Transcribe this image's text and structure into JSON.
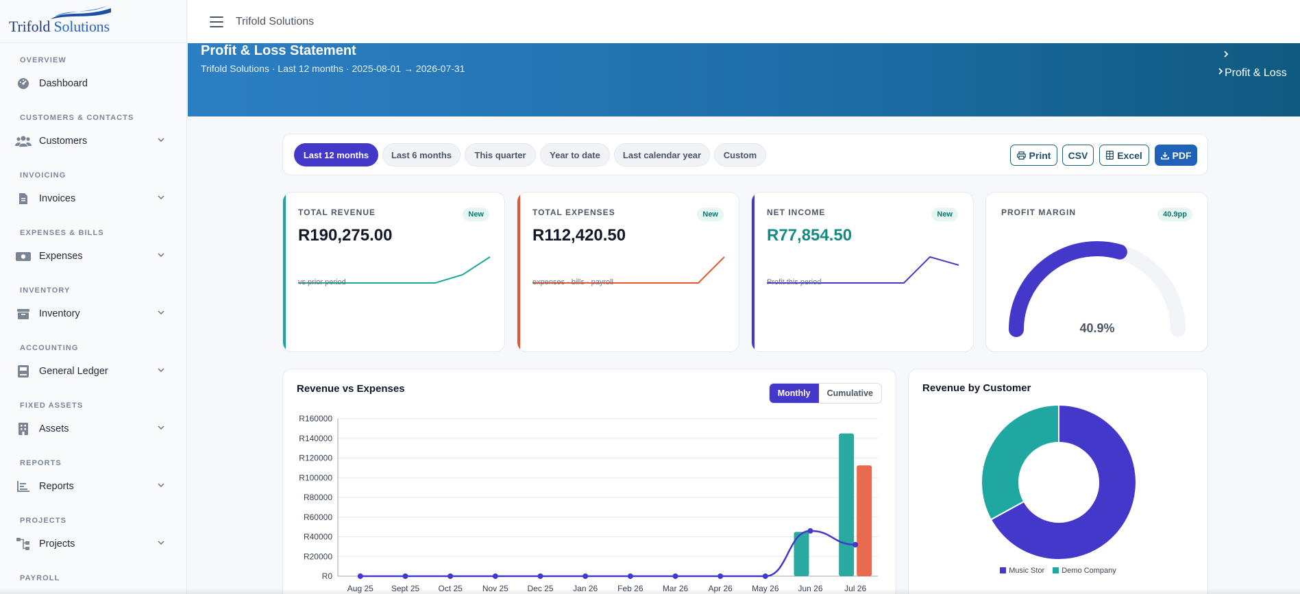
{
  "app": {
    "logo_primary": "Trifold",
    "logo_secondary": "Solutions",
    "topbar_title": "Trifold Solutions"
  },
  "sidebar": {
    "sections": [
      {
        "label": "OVERVIEW",
        "item": "Dashboard",
        "icon": "dashboard-icon",
        "has_chevron": false
      },
      {
        "label": "CUSTOMERS & CONTACTS",
        "item": "Customers",
        "icon": "users-icon",
        "has_chevron": true
      },
      {
        "label": "INVOICING",
        "item": "Invoices",
        "icon": "invoice-icon",
        "has_chevron": true
      },
      {
        "label": "EXPENSES & BILLS",
        "item": "Expenses",
        "icon": "money-icon",
        "has_chevron": true
      },
      {
        "label": "INVENTORY",
        "item": "Inventory",
        "icon": "box-icon",
        "has_chevron": true
      },
      {
        "label": "ACCOUNTING",
        "item": "General Ledger",
        "icon": "ledger-icon",
        "has_chevron": true
      },
      {
        "label": "FIXED ASSETS",
        "item": "Assets",
        "icon": "building-icon",
        "has_chevron": true
      },
      {
        "label": "REPORTS",
        "item": "Reports",
        "icon": "reports-icon",
        "has_chevron": true
      },
      {
        "label": "PROJECTS",
        "item": "Projects",
        "icon": "projects-icon",
        "has_chevron": true
      },
      {
        "label": "PAYROLL"
      }
    ]
  },
  "hero": {
    "title": "Profit & Loss Statement",
    "subtitle": "Trifold Solutions · Last 12 months · 2025-08-01 → 2026-07-31",
    "breadcrumb_current": "Profit & Loss"
  },
  "filters": {
    "periods": [
      "Last 12 months",
      "Last 6 months",
      "This quarter",
      "Year to date",
      "Last calendar year",
      "Custom"
    ],
    "active": "Last 12 months",
    "exports": {
      "print": "Print",
      "csv": "CSV",
      "excel": "Excel",
      "pdf": "PDF"
    }
  },
  "kpis": {
    "revenue": {
      "label": "TOTAL REVENUE",
      "badge": "New",
      "value": "R190,275.00",
      "note": "vs prior period",
      "color": "#1aa69a"
    },
    "expenses": {
      "label": "TOTAL EXPENSES",
      "badge": "New",
      "value": "R112,420.50",
      "note": "expenses · bills · payroll",
      "color": "#e8562f"
    },
    "net_income": {
      "label": "NET INCOME",
      "badge": "New",
      "value": "R77,854.50",
      "note": "Profit this period",
      "color": "#4338ca",
      "value_color": "#148a82"
    },
    "margin": {
      "label": "PROFIT MARGIN",
      "badge": "40.9pp",
      "value": "40.9%",
      "fraction": 0.59,
      "color": "#4338ca"
    }
  },
  "revenue_vs_expenses": {
    "title": "Revenue vs Expenses",
    "toggle": [
      "Monthly",
      "Cumulative"
    ],
    "toggle_active": "Monthly"
  },
  "revenue_by_customer": {
    "title": "Revenue by Customer"
  },
  "chart_data": [
    {
      "type": "bar",
      "title": "Revenue vs Expenses",
      "categories": [
        "Aug 25",
        "Sept 25",
        "Oct 25",
        "Nov 25",
        "Dec 25",
        "Jan 26",
        "Feb 26",
        "Mar 26",
        "Apr 26",
        "May 26",
        "Jun 26",
        "Jul 26"
      ],
      "y_ticks": [
        "R160000",
        "R140000",
        "R120000",
        "R100000",
        "R80000",
        "R60000",
        "R40000",
        "R20000",
        "R0"
      ],
      "ylim": [
        0,
        160000
      ],
      "grid": true,
      "series": [
        {
          "kind": "bar",
          "color": "#2aa9a0",
          "values": [
            0,
            0,
            0,
            0,
            0,
            0,
            0,
            0,
            0,
            0,
            45000,
            145000
          ]
        },
        {
          "kind": "bar",
          "color": "#e86a4f",
          "values": [
            0,
            0,
            0,
            0,
            0,
            0,
            0,
            0,
            0,
            0,
            0,
            112500
          ]
        },
        {
          "kind": "line",
          "color": "#4338ca",
          "values": [
            0,
            0,
            0,
            0,
            0,
            0,
            0,
            0,
            0,
            0,
            46000,
            32000
          ]
        }
      ]
    },
    {
      "type": "pie",
      "title": "Revenue by Customer",
      "labels": [
        "Music Stor",
        "Demo Company"
      ],
      "values": [
        67,
        33
      ],
      "colors": [
        "#4338ca",
        "#1fa8a2"
      ],
      "legend": "bottom"
    }
  ]
}
